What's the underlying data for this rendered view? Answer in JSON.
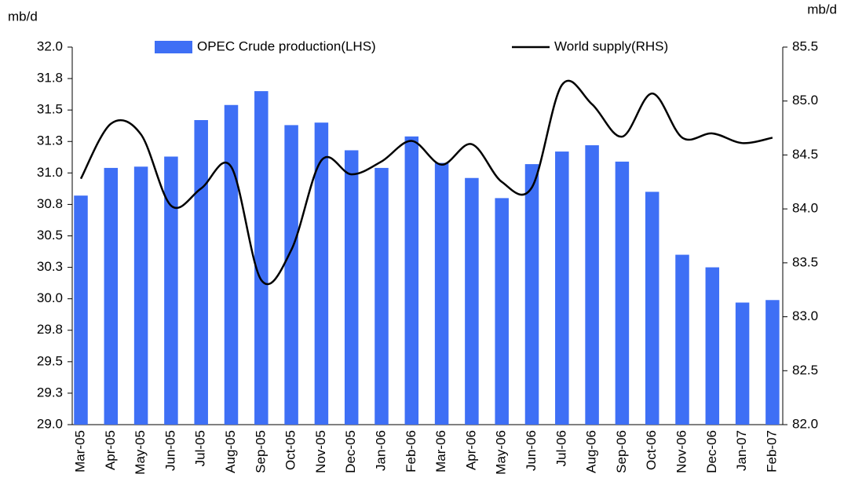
{
  "chart_data": {
    "type": "bar_line",
    "ylabel": "mb/d",
    "y2label": "mb/d",
    "categories": [
      "Mar-05",
      "Apr-05",
      "May-05",
      "Jun-05",
      "Jul-05",
      "Aug-05",
      "Sep-05",
      "Oct-05",
      "Nov-05",
      "Dec-05",
      "Jan-06",
      "Feb-06",
      "Mar-06",
      "Apr-06",
      "May-06",
      "Jun-06",
      "Jul-06",
      "Aug-06",
      "Sep-06",
      "Oct-06",
      "Nov-06",
      "Dec-06",
      "Jan-07",
      "Feb-07"
    ],
    "series": [
      {
        "name": "OPEC Crude production(LHS)",
        "type": "bar",
        "color": "#3e6ff5",
        "values": [
          30.82,
          31.04,
          31.05,
          31.13,
          31.42,
          31.54,
          31.65,
          31.38,
          31.4,
          31.18,
          31.04,
          31.29,
          31.08,
          30.96,
          30.8,
          31.07,
          31.17,
          31.22,
          31.09,
          30.85,
          30.35,
          30.25,
          29.97,
          29.99
        ]
      },
      {
        "name": "World supply(RHS)",
        "type": "line",
        "color": "#000000",
        "axis": "y2",
        "values": [
          84.28,
          84.79,
          84.69,
          84.03,
          84.19,
          84.39,
          83.34,
          83.62,
          84.45,
          84.32,
          84.44,
          84.63,
          84.41,
          84.6,
          84.25,
          84.2,
          85.15,
          84.97,
          84.67,
          85.07,
          84.66,
          84.7,
          84.61,
          84.66
        ]
      }
    ],
    "ylim": [
      29.0,
      32.0
    ],
    "yticks": [
      {
        "value": 29.0,
        "label": "29.0"
      },
      {
        "value": 29.25,
        "label": "29.3"
      },
      {
        "value": 29.5,
        "label": "29.5"
      },
      {
        "value": 29.75,
        "label": "29.8"
      },
      {
        "value": 30.0,
        "label": "30.0"
      },
      {
        "value": 30.25,
        "label": "30.3"
      },
      {
        "value": 30.5,
        "label": "30.5"
      },
      {
        "value": 30.75,
        "label": "30.8"
      },
      {
        "value": 31.0,
        "label": "31.0"
      },
      {
        "value": 31.25,
        "label": "31.3"
      },
      {
        "value": 31.5,
        "label": "31.5"
      },
      {
        "value": 31.75,
        "label": "31.8"
      },
      {
        "value": 32.0,
        "label": "32.0"
      }
    ],
    "y2lim": [
      82.0,
      85.5
    ],
    "y2ticks": [
      {
        "value": 82.0,
        "label": "82.0"
      },
      {
        "value": 82.5,
        "label": "82.5"
      },
      {
        "value": 83.0,
        "label": "83.0"
      },
      {
        "value": 83.5,
        "label": "83.5"
      },
      {
        "value": 84.0,
        "label": "84.0"
      },
      {
        "value": 84.5,
        "label": "84.5"
      },
      {
        "value": 85.0,
        "label": "85.0"
      },
      {
        "value": 85.5,
        "label": "85.5"
      }
    ]
  }
}
